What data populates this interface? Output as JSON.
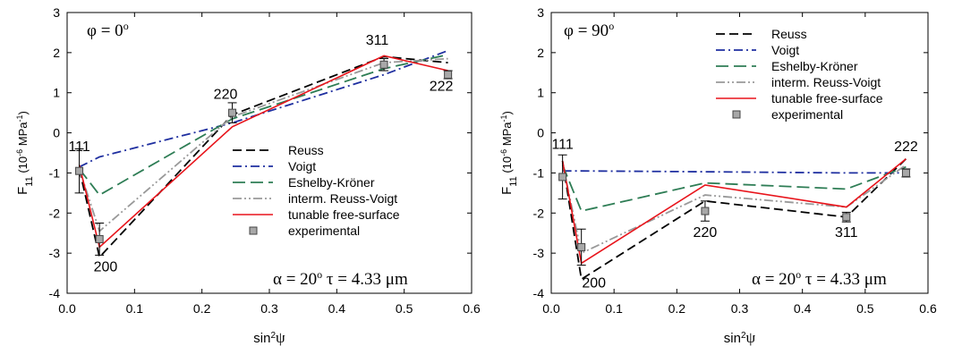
{
  "chart_data": [
    {
      "type": "line",
      "panel_label": "φ = 0",
      "panel_label_sup": "o",
      "annotation": {
        "alpha": "α = 20",
        "alpha_sup": "o",
        "tau": "τ = 4.33 μm"
      },
      "ylabel": {
        "main": "F",
        "sub": "11",
        "paren_open": " (10",
        "sup": "-6",
        "unit": " MPa",
        "unit_sup": "-1",
        "paren_close": ")"
      },
      "xlabel": {
        "main": "sin",
        "sup": "2",
        "sym": "ψ"
      },
      "xlim": [
        0.0,
        0.6
      ],
      "ylim": [
        -4,
        3
      ],
      "xticks": [
        "0.0",
        "0.1",
        "0.2",
        "0.3",
        "0.4",
        "0.5",
        "0.6"
      ],
      "yticks": [
        "-4",
        "-3",
        "-2",
        "-1",
        "0",
        "1",
        "2",
        "3"
      ],
      "x": [
        0.018,
        0.048,
        0.245,
        0.47,
        0.565
      ],
      "peak_labels": [
        {
          "text": "111",
          "x": 0.018,
          "y": -0.45
        },
        {
          "text": "200",
          "x": 0.057,
          "y": -3.45
        },
        {
          "text": "220",
          "x": 0.235,
          "y": 0.85
        },
        {
          "text": "311",
          "x": 0.46,
          "y": 2.2
        },
        {
          "text": "222",
          "x": 0.555,
          "y": 1.05
        }
      ],
      "series": [
        {
          "name": "Reuss",
          "color": "#000000",
          "style": "dash",
          "values": [
            -0.9,
            -3.1,
            0.45,
            1.9,
            1.75
          ]
        },
        {
          "name": "Voigt",
          "color": "#1f2fa0",
          "style": "dashdot",
          "values": [
            -0.85,
            -0.6,
            0.25,
            1.45,
            2.05
          ]
        },
        {
          "name": "Eshelby-Kröner",
          "color": "#2e7d55",
          "style": "longdash",
          "values": [
            -0.9,
            -1.55,
            0.35,
            1.6,
            1.95
          ]
        },
        {
          "name": "interm. Reuss-Voigt",
          "color": "#999999",
          "style": "dashdotdot",
          "values": [
            -0.9,
            -2.45,
            0.4,
            1.75,
            1.85
          ]
        },
        {
          "name": "tunable free-surface",
          "color": "#e8141b",
          "style": "solid",
          "values": [
            -0.8,
            -2.85,
            0.15,
            1.92,
            1.55
          ]
        }
      ],
      "experimental": {
        "name": "experimental",
        "values": [
          -0.95,
          -2.65,
          0.5,
          1.7,
          1.45
        ],
        "errors": [
          0.55,
          0.4,
          0.25,
          0.15,
          0.1
        ]
      },
      "legend_position": "lower-right"
    },
    {
      "type": "line",
      "panel_label": "φ = 90",
      "panel_label_sup": "o",
      "annotation": {
        "alpha": "α = 20",
        "alpha_sup": "o",
        "tau": "τ = 4.33 μm"
      },
      "ylabel": {
        "main": "F",
        "sub": "11",
        "paren_open": " (10",
        "sup": "-6",
        "unit": " MPa",
        "unit_sup": "-1",
        "paren_close": ")"
      },
      "xlabel": {
        "main": "sin",
        "sup": "2",
        "sym": "ψ"
      },
      "xlim": [
        0.0,
        0.6
      ],
      "ylim": [
        -4,
        3
      ],
      "xticks": [
        "0.0",
        "0.1",
        "0.2",
        "0.3",
        "0.4",
        "0.5",
        "0.6"
      ],
      "yticks": [
        "-4",
        "-3",
        "-2",
        "-1",
        "0",
        "1",
        "2",
        "3"
      ],
      "x": [
        0.018,
        0.048,
        0.245,
        0.47,
        0.565
      ],
      "peak_labels": [
        {
          "text": "111",
          "x": 0.018,
          "y": -0.4
        },
        {
          "text": "200",
          "x": 0.068,
          "y": -3.85
        },
        {
          "text": "220",
          "x": 0.245,
          "y": -2.6
        },
        {
          "text": "311",
          "x": 0.47,
          "y": -2.6
        },
        {
          "text": "222",
          "x": 0.565,
          "y": -0.45
        }
      ],
      "series": [
        {
          "name": "Reuss",
          "color": "#000000",
          "style": "dash",
          "values": [
            -0.7,
            -3.65,
            -1.7,
            -2.1,
            -0.65
          ]
        },
        {
          "name": "Voigt",
          "color": "#1f2fa0",
          "style": "dashdot",
          "values": [
            -0.95,
            -0.95,
            -0.97,
            -1.0,
            -1.0
          ]
        },
        {
          "name": "Eshelby-Kröner",
          "color": "#2e7d55",
          "style": "longdash",
          "values": [
            -0.8,
            -1.95,
            -1.25,
            -1.4,
            -0.85
          ]
        },
        {
          "name": "interm. Reuss-Voigt",
          "color": "#999999",
          "style": "dashdotdot",
          "values": [
            -0.75,
            -3.0,
            -1.55,
            -1.85,
            -0.8
          ]
        },
        {
          "name": "tunable free-surface",
          "color": "#e8141b",
          "style": "solid",
          "values": [
            -0.7,
            -3.25,
            -1.3,
            -1.85,
            -0.65
          ]
        }
      ],
      "experimental": {
        "name": "experimental",
        "values": [
          -1.1,
          -2.85,
          -1.95,
          -2.1,
          -1.0
        ],
        "errors": [
          0.55,
          0.45,
          0.25,
          0.12,
          0.1
        ]
      },
      "legend_position": "upper-right"
    }
  ]
}
